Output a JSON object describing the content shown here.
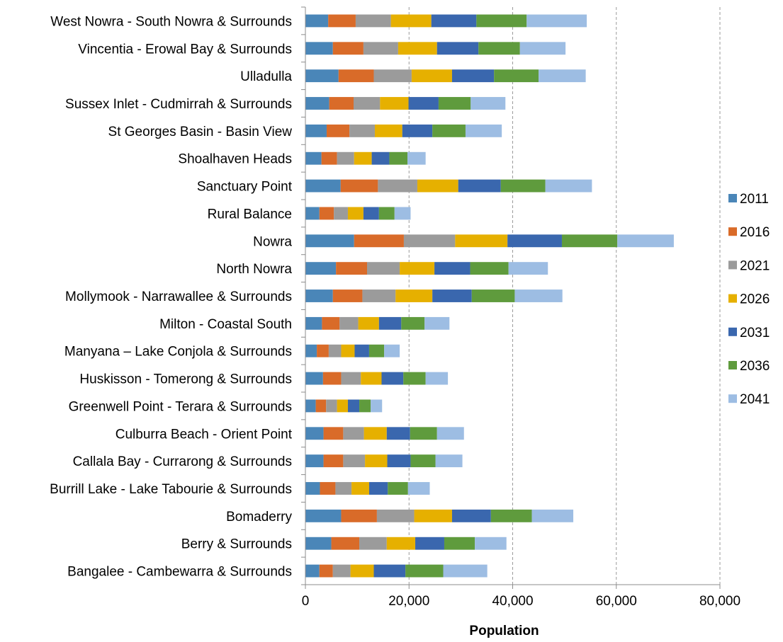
{
  "chart_data": {
    "type": "bar",
    "orientation": "horizontal",
    "stacked": true,
    "categories": [
      "West Nowra - South Nowra & Surrounds",
      "Vincentia - Erowal Bay & Surrounds",
      "Ulladulla",
      "Sussex Inlet - Cudmirrah & Surrounds",
      "St Georges Basin - Basin View",
      "Shoalhaven Heads",
      "Sanctuary Point",
      "Rural Balance",
      "Nowra",
      "North Nowra",
      "Mollymook - Narrawallee & Surrounds",
      "Milton - Coastal South",
      "Manyana – Lake Conjola & Surrounds",
      "Huskisson - Tomerong & Surrounds",
      "Greenwell Point - Terara & Surrounds",
      "Culburra Beach - Orient Point",
      "Callala Bay - Currarong & Surrounds",
      "Burrill Lake - Lake Tabourie & Surrounds",
      "Bomaderry",
      "Berry & Surrounds",
      "Bangalee - Cambewarra & Surrounds"
    ],
    "series": [
      {
        "name": "2011",
        "color": "#4a86b8",
        "values": [
          4400,
          5300,
          6400,
          4600,
          4100,
          3100,
          6800,
          2700,
          9400,
          5900,
          5300,
          3200,
          2200,
          3400,
          2000,
          3500,
          3500,
          2800,
          6900,
          5000,
          2700
        ]
      },
      {
        "name": "2016",
        "color": "#d96b29",
        "values": [
          5300,
          5900,
          6800,
          4700,
          4400,
          3000,
          7200,
          2800,
          9600,
          6000,
          5700,
          3400,
          2300,
          3500,
          2000,
          3800,
          3800,
          3000,
          6900,
          5400,
          2600
        ]
      },
      {
        "name": "2021",
        "color": "#9b9b9b",
        "values": [
          6800,
          6700,
          7300,
          5100,
          4900,
          3300,
          7600,
          2700,
          9900,
          6300,
          6400,
          3600,
          2400,
          3800,
          2100,
          4000,
          4200,
          3100,
          7200,
          5300,
          3400
        ]
      },
      {
        "name": "2026",
        "color": "#e6b000",
        "values": [
          7800,
          7500,
          7800,
          5500,
          5300,
          3400,
          7900,
          3000,
          10100,
          6700,
          7100,
          4000,
          2600,
          4000,
          2100,
          4400,
          4300,
          3400,
          7300,
          5500,
          4500
        ]
      },
      {
        "name": "2031",
        "color": "#3a67ae",
        "values": [
          8700,
          8000,
          8100,
          5800,
          5800,
          3400,
          8200,
          3000,
          10500,
          6900,
          7600,
          4300,
          2800,
          4200,
          2200,
          4500,
          4500,
          3600,
          7500,
          5600,
          6100
        ]
      },
      {
        "name": "2036",
        "color": "#5f9b3d",
        "values": [
          9700,
          8000,
          8600,
          6200,
          6400,
          3500,
          8600,
          3000,
          10700,
          7400,
          8300,
          4500,
          2900,
          4300,
          2200,
          5200,
          4800,
          3900,
          7900,
          5900,
          7300
        ]
      },
      {
        "name": "2041",
        "color": "#9dbde3",
        "values": [
          11600,
          8800,
          9100,
          6700,
          7000,
          3500,
          9000,
          3100,
          10900,
          7600,
          9200,
          4800,
          3000,
          4300,
          2200,
          5200,
          5200,
          4200,
          8000,
          6100,
          8500
        ]
      }
    ],
    "xlim": [
      0,
      80000
    ],
    "xticks": [
      "0",
      "20,000",
      "40,000",
      "60,000",
      "80,000"
    ],
    "xtick_values": [
      0,
      20000,
      40000,
      60000,
      80000
    ],
    "xlabel": "Population",
    "ylabel": "",
    "title": "",
    "grid": "vertical dashed",
    "legend": "right"
  }
}
